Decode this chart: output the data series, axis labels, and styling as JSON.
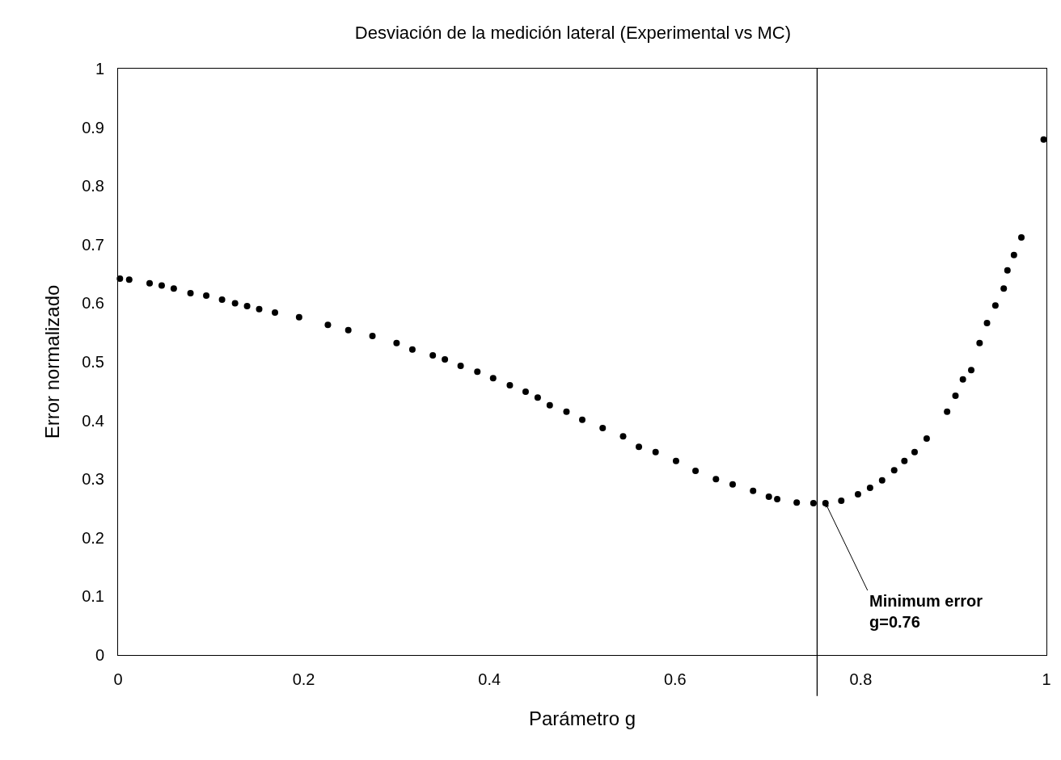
{
  "chart_data": {
    "type": "scatter",
    "title": "Desviación de la medición lateral (Experimental vs MC)",
    "xlabel": "Parámetro g",
    "ylabel": "Error normalizado",
    "x": [
      0.002,
      0.012,
      0.034,
      0.047,
      0.06,
      0.078,
      0.095,
      0.112,
      0.126,
      0.139,
      0.152,
      0.169,
      0.195,
      0.226,
      0.248,
      0.274,
      0.3,
      0.317,
      0.339,
      0.352,
      0.369,
      0.387,
      0.404,
      0.422,
      0.439,
      0.452,
      0.465,
      0.483,
      0.5,
      0.522,
      0.544,
      0.561,
      0.579,
      0.601,
      0.622,
      0.644,
      0.662,
      0.684,
      0.701,
      0.71,
      0.731,
      0.749,
      0.762,
      0.779,
      0.797,
      0.81,
      0.823,
      0.836,
      0.847,
      0.858,
      0.871,
      0.893,
      0.902,
      0.91,
      0.919,
      0.928,
      0.936,
      0.945,
      0.954,
      0.958,
      0.965,
      0.973,
      0.997
    ],
    "values": [
      0.642,
      0.64,
      0.634,
      0.63,
      0.625,
      0.617,
      0.613,
      0.606,
      0.6,
      0.595,
      0.59,
      0.584,
      0.576,
      0.563,
      0.554,
      0.544,
      0.532,
      0.521,
      0.511,
      0.504,
      0.493,
      0.483,
      0.472,
      0.46,
      0.449,
      0.439,
      0.426,
      0.415,
      0.401,
      0.387,
      0.373,
      0.355,
      0.346,
      0.331,
      0.314,
      0.3,
      0.291,
      0.28,
      0.27,
      0.266,
      0.26,
      0.259,
      0.259,
      0.263,
      0.274,
      0.285,
      0.298,
      0.315,
      0.331,
      0.346,
      0.369,
      0.415,
      0.442,
      0.47,
      0.486,
      0.532,
      0.566,
      0.596,
      0.625,
      0.656,
      0.682,
      0.712,
      0.879
    ],
    "color": "#000000",
    "marker": "circle",
    "xlim": [
      0,
      1
    ],
    "xticks": [
      0,
      0.2,
      0.4,
      0.6,
      0.8,
      1
    ],
    "ylim": [
      0,
      1
    ],
    "yticks": [
      0,
      0.1,
      0.2,
      0.3,
      0.4,
      0.5,
      0.6,
      0.7,
      0.8,
      0.9,
      1
    ],
    "ref_lines": [
      {
        "axis": "x",
        "value": 0.753,
        "color": "#000000",
        "line_style": "solid"
      }
    ],
    "annotations": [
      {
        "text": "Minimum error\ng=0.76",
        "x": 0.762,
        "y": 0.259
      }
    ]
  }
}
